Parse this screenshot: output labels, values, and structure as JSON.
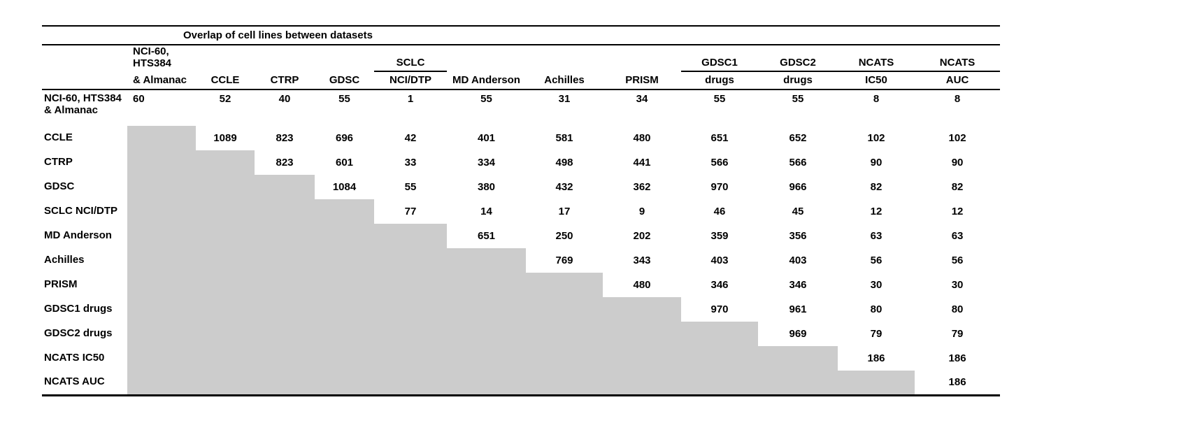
{
  "chart_data": {
    "type": "table",
    "title": "Overlap of cell lines between datasets",
    "shaded_cell_color": "#cccccc",
    "shading_rule": "lower-triangle cells below the diagonal are shaded gray and empty",
    "layout": {
      "grid": false,
      "background": "#ffffff",
      "text_color": "#000000"
    },
    "columns": [
      {
        "key": "nci60-almanac",
        "line1": "NCI-60, HTS384",
        "line2": "& Almanac",
        "underline": false,
        "align": "left"
      },
      {
        "key": "ccle",
        "line1": "",
        "line2": "CCLE",
        "underline": false,
        "align": "center"
      },
      {
        "key": "ctrp",
        "line1": "",
        "line2": "CTRP",
        "underline": false,
        "align": "center"
      },
      {
        "key": "gdsc",
        "line1": "",
        "line2": "GDSC",
        "underline": false,
        "align": "center"
      },
      {
        "key": "sclc-ncidtp",
        "line1": "SCLC",
        "line2": "NCI/DTP",
        "underline": true,
        "align": "center"
      },
      {
        "key": "md-anderson",
        "line1": "",
        "line2": "MD Anderson",
        "underline": false,
        "align": "center"
      },
      {
        "key": "achilles",
        "line1": "",
        "line2": "Achilles",
        "underline": false,
        "align": "center"
      },
      {
        "key": "prism",
        "line1": "",
        "line2": "PRISM",
        "underline": false,
        "align": "center"
      },
      {
        "key": "gdsc1-drugs",
        "line1": "GDSC1",
        "line2": "drugs",
        "underline": true,
        "align": "center"
      },
      {
        "key": "gdsc2-drugs",
        "line1": "GDSC2",
        "line2": "drugs",
        "underline": true,
        "align": "center"
      },
      {
        "key": "ncats-ic50",
        "line1": "NCATS",
        "line2": "IC50",
        "underline": true,
        "align": "center"
      },
      {
        "key": "ncats-auc",
        "line1": "NCATS",
        "line2": "AUC",
        "underline": true,
        "align": "center"
      }
    ],
    "rows": [
      {
        "key": "nci60-almanac",
        "label": "NCI-60, HTS384 & Almanac",
        "values": [
          60,
          52,
          40,
          55,
          1,
          55,
          31,
          34,
          55,
          55,
          8,
          8
        ]
      },
      {
        "key": "ccle",
        "label": "CCLE",
        "values": [
          null,
          1089,
          823,
          696,
          42,
          401,
          581,
          480,
          651,
          652,
          102,
          102
        ]
      },
      {
        "key": "ctrp",
        "label": "CTRP",
        "values": [
          null,
          null,
          823,
          601,
          33,
          334,
          498,
          441,
          566,
          566,
          90,
          90
        ]
      },
      {
        "key": "gdsc",
        "label": "GDSC",
        "values": [
          null,
          null,
          null,
          1084,
          55,
          380,
          432,
          362,
          970,
          966,
          82,
          82
        ]
      },
      {
        "key": "sclc-ncidtp",
        "label": "SCLC NCI/DTP",
        "values": [
          null,
          null,
          null,
          null,
          77,
          14,
          17,
          9,
          46,
          45,
          12,
          12
        ]
      },
      {
        "key": "md-anderson",
        "label": "MD Anderson",
        "values": [
          null,
          null,
          null,
          null,
          null,
          651,
          250,
          202,
          359,
          356,
          63,
          63
        ]
      },
      {
        "key": "achilles",
        "label": "Achilles",
        "values": [
          null,
          null,
          null,
          null,
          null,
          null,
          769,
          343,
          403,
          403,
          56,
          56
        ]
      },
      {
        "key": "prism",
        "label": "PRISM",
        "values": [
          null,
          null,
          null,
          null,
          null,
          null,
          null,
          480,
          346,
          346,
          30,
          30
        ]
      },
      {
        "key": "gdsc1-drugs",
        "label": "GDSC1 drugs",
        "values": [
          null,
          null,
          null,
          null,
          null,
          null,
          null,
          null,
          970,
          961,
          80,
          80
        ]
      },
      {
        "key": "gdsc2-drugs",
        "label": "GDSC2 drugs",
        "values": [
          null,
          null,
          null,
          null,
          null,
          null,
          null,
          null,
          null,
          969,
          79,
          79
        ]
      },
      {
        "key": "ncats-ic50",
        "label": "NCATS IC50",
        "values": [
          null,
          null,
          null,
          null,
          null,
          null,
          null,
          null,
          null,
          null,
          186,
          186
        ]
      },
      {
        "key": "ncats-auc",
        "label": "NCATS AUC",
        "values": [
          null,
          null,
          null,
          null,
          null,
          null,
          null,
          null,
          null,
          null,
          null,
          186
        ]
      }
    ]
  }
}
